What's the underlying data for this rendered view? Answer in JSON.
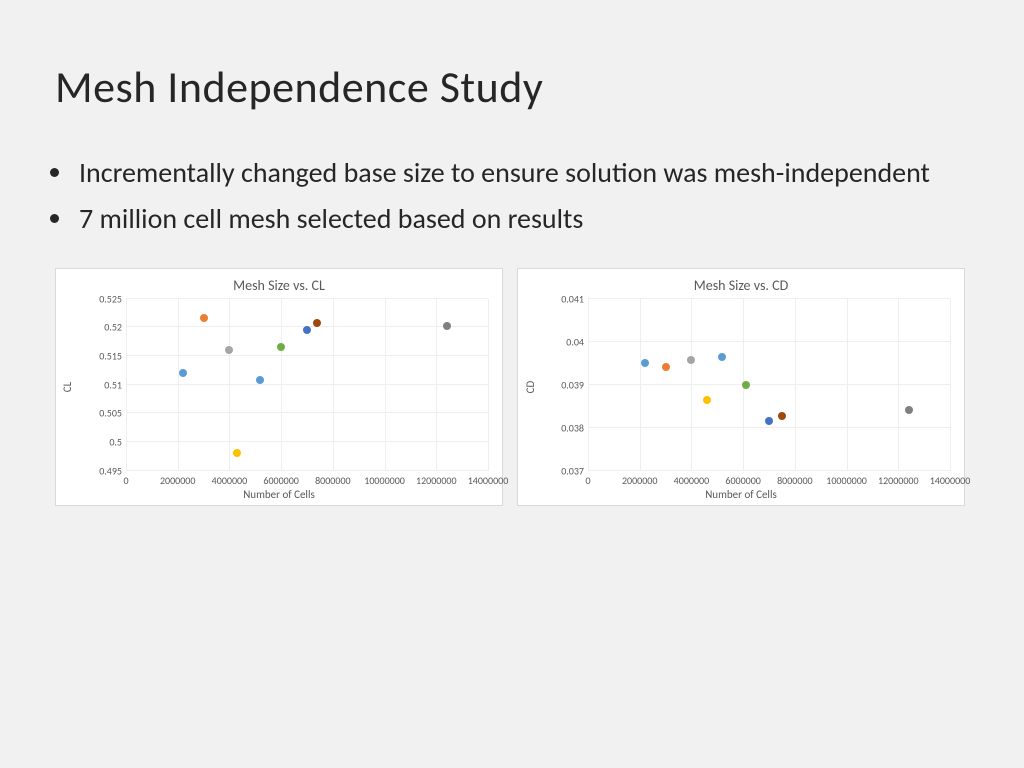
{
  "title": "Mesh Independence Study",
  "bullets": [
    "Incrementally changed base size to ensure solution was mesh-independent",
    "7 million cell mesh selected based on results"
  ],
  "charts": [
    {
      "title": "Mesh Size vs. CL",
      "type": "scatter",
      "x_label": "Number of Cells",
      "y_label": "CL",
      "xlim": [
        0,
        14000000
      ],
      "ylim": [
        0.495,
        0.525
      ],
      "xticks": [
        0,
        2000000,
        4000000,
        6000000,
        8000000,
        10000000,
        12000000,
        14000000
      ],
      "yticks": [
        0.495,
        0.5,
        0.505,
        0.51,
        0.515,
        0.52,
        0.525
      ],
      "ytick_labels": [
        "0.495",
        "0.5",
        "0.505",
        "0.51",
        "0.515",
        "0.52",
        "0.525"
      ],
      "grid_color": "#eeeeee",
      "border_color": "#d9d9d9",
      "tick_color": "#595959",
      "tick_fontsize": 10,
      "title_color": "#595959",
      "title_fontsize": 14,
      "label_fontsize": 11,
      "marker_size": 8,
      "points": [
        {
          "x": 2200000,
          "y": 0.512,
          "color": "#5b9bd5"
        },
        {
          "x": 3000000,
          "y": 0.5217,
          "color": "#ed7d31"
        },
        {
          "x": 4000000,
          "y": 0.516,
          "color": "#a5a5a5"
        },
        {
          "x": 4300000,
          "y": 0.498,
          "color": "#ffc000"
        },
        {
          "x": 5200000,
          "y": 0.5108,
          "color": "#5b9bd5"
        },
        {
          "x": 6000000,
          "y": 0.5165,
          "color": "#70ad47"
        },
        {
          "x": 7000000,
          "y": 0.5195,
          "color": "#4472c4"
        },
        {
          "x": 7400000,
          "y": 0.5208,
          "color": "#9e480e"
        },
        {
          "x": 12400000,
          "y": 0.5202,
          "color": "#808080"
        }
      ]
    },
    {
      "title": "Mesh Size vs. CD",
      "type": "scatter",
      "x_label": "Number of Cells",
      "y_label": "CD",
      "xlim": [
        0,
        14000000
      ],
      "ylim": [
        0.037,
        0.041
      ],
      "xticks": [
        0,
        2000000,
        4000000,
        6000000,
        8000000,
        10000000,
        12000000,
        14000000
      ],
      "yticks": [
        0.037,
        0.038,
        0.039,
        0.04,
        0.041
      ],
      "ytick_labels": [
        "0.037",
        "0.038",
        "0.039",
        "0.04",
        "0.041"
      ],
      "grid_color": "#eeeeee",
      "border_color": "#d9d9d9",
      "tick_color": "#595959",
      "tick_fontsize": 10,
      "title_color": "#595959",
      "title_fontsize": 14,
      "label_fontsize": 11,
      "marker_size": 8,
      "points": [
        {
          "x": 2200000,
          "y": 0.0395,
          "color": "#5b9bd5"
        },
        {
          "x": 3000000,
          "y": 0.03942,
          "color": "#ed7d31"
        },
        {
          "x": 4000000,
          "y": 0.03958,
          "color": "#a5a5a5"
        },
        {
          "x": 4600000,
          "y": 0.03865,
          "color": "#ffc000"
        },
        {
          "x": 5200000,
          "y": 0.03965,
          "color": "#5b9bd5"
        },
        {
          "x": 6100000,
          "y": 0.039,
          "color": "#70ad47"
        },
        {
          "x": 7000000,
          "y": 0.03815,
          "color": "#4472c4"
        },
        {
          "x": 7500000,
          "y": 0.03828,
          "color": "#9e480e"
        },
        {
          "x": 12400000,
          "y": 0.03842,
          "color": "#808080"
        }
      ]
    }
  ]
}
